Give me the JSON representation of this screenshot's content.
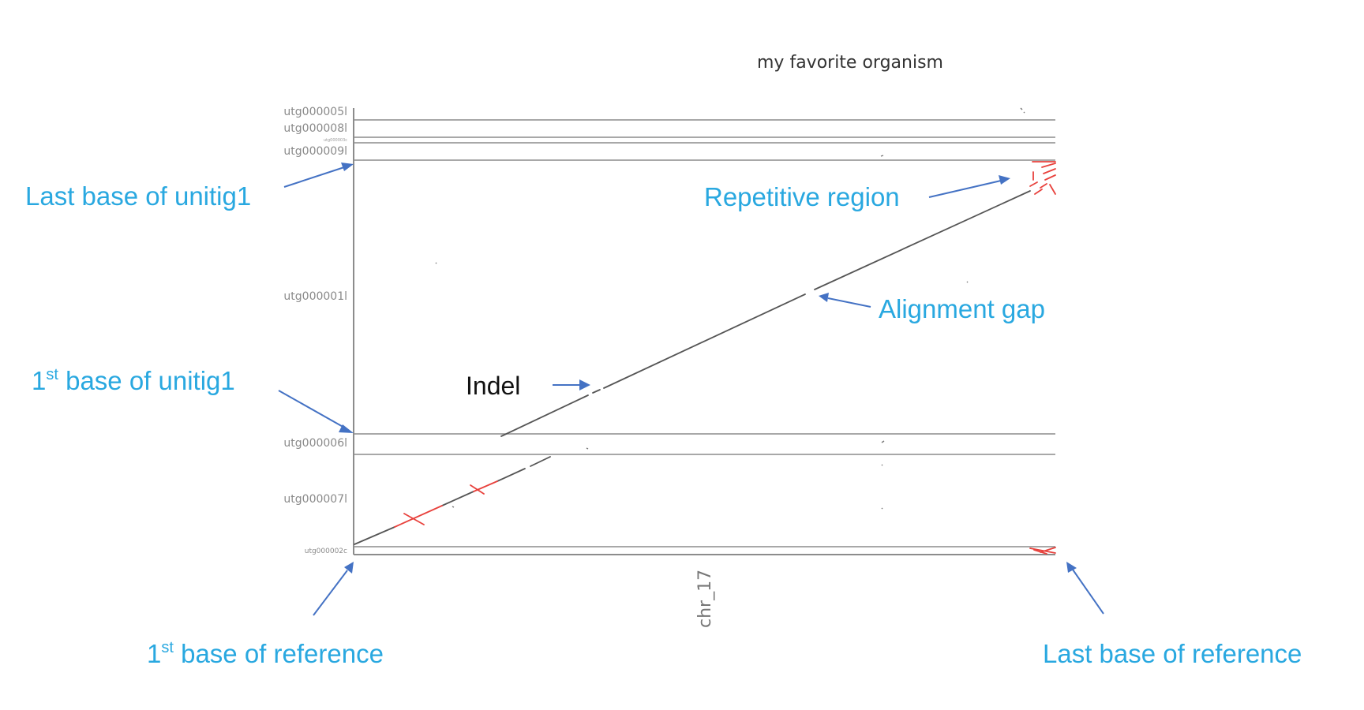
{
  "plot": {
    "title": "my favorite organism",
    "x_axis_label": "chr_17",
    "contigs": {
      "utg000005l": "utg000005l",
      "utg000008l": "utg000008l",
      "utg000003c": "utg000003c",
      "utg000009l": "utg000009l",
      "utg000001l": "utg000001l",
      "utg000006l": "utg000006l",
      "utg000007l": "utg000007l",
      "utg000002c": "utg000002c"
    }
  },
  "annotations": {
    "last_base_unitig1": "Last base of unitig1",
    "first_base_unitig1_num": "1",
    "first_base_unitig1_sup": "st",
    "first_base_unitig1_rest": " base of unitig1",
    "repetitive_region": "Repetitive region",
    "alignment_gap": "Alignment gap",
    "indel": "Indel",
    "first_base_reference_num": "1",
    "first_base_reference_sup": "st",
    "first_base_reference_rest": " base of reference",
    "last_base_reference": "Last base of reference"
  },
  "colors": {
    "annotation": "#29a8e0",
    "arrow": "#4472c4",
    "forward_alignment": "#555555",
    "reverse_alignment": "#e8413c",
    "grid": "#8c8c8c"
  }
}
